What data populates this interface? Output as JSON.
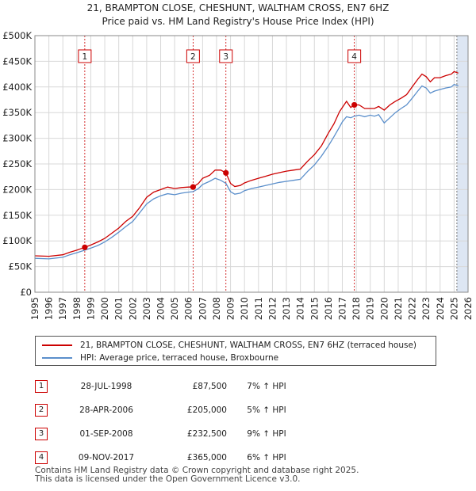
{
  "header": {
    "title_line1": "21, BRAMPTON CLOSE, CHESHUNT, WALTHAM CROSS, EN7 6HZ",
    "title_line2": "Price paid vs. HM Land Registry's House Price Index (HPI)"
  },
  "colors": {
    "property": "#cc0000",
    "hpi": "#5b8fcb",
    "shade": "#dde6f3",
    "marker_border": "#cc0000"
  },
  "chart_data": {
    "type": "line",
    "title": "21, BRAMPTON CLOSE, CHESHUNT, WALTHAM CROSS, EN7 6HZ — Price paid vs. HM Land Registry's House Price Index (HPI)",
    "xlabel": "",
    "ylabel": "",
    "xlim": [
      1995,
      2026
    ],
    "ylim": [
      0,
      500000
    ],
    "y_ticks": [
      0,
      50000,
      100000,
      150000,
      200000,
      250000,
      300000,
      350000,
      400000,
      450000,
      500000
    ],
    "y_tick_labels": [
      "£0",
      "£50K",
      "£100K",
      "£150K",
      "£200K",
      "£250K",
      "£300K",
      "£350K",
      "£400K",
      "£450K",
      "£500K"
    ],
    "x_ticks": [
      1995,
      1996,
      1997,
      1998,
      1999,
      2000,
      2001,
      2002,
      2003,
      2004,
      2005,
      2006,
      2007,
      2008,
      2009,
      2010,
      2011,
      2012,
      2013,
      2014,
      2015,
      2016,
      2017,
      2018,
      2019,
      2020,
      2021,
      2022,
      2023,
      2024,
      2025,
      2026
    ],
    "x_tick_labels": [
      "1995",
      "1996",
      "1997",
      "1998",
      "1999",
      "2000",
      "2001",
      "2002",
      "2003",
      "2004",
      "2005",
      "2006",
      "2007",
      "2008",
      "2009",
      "2010",
      "2011",
      "2012",
      "2013",
      "2014",
      "2015",
      "2016",
      "2017",
      "2018",
      "2019",
      "2020",
      "2021",
      "2022",
      "2023",
      "2024",
      "2025",
      "2026"
    ],
    "grid": true,
    "forecast_shade_from": 2025.2,
    "series": [
      {
        "name": "21, BRAMPTON CLOSE, CHESHUNT, WALTHAM CROSS, EN7 6HZ (terraced house)",
        "color": "#cc0000",
        "x": [
          1995.0,
          1996.0,
          1997.0,
          1997.5,
          1998.0,
          1998.57,
          1999.0,
          1999.5,
          2000.0,
          2000.5,
          2001.0,
          2001.5,
          2002.0,
          2002.5,
          2003.0,
          2003.5,
          2004.0,
          2004.5,
          2005.0,
          2005.5,
          2006.0,
          2006.32,
          2006.7,
          2007.0,
          2007.5,
          2007.9,
          2008.3,
          2008.67,
          2009.0,
          2009.3,
          2009.7,
          2010.0,
          2010.5,
          2011.0,
          2011.5,
          2012.0,
          2012.5,
          2013.0,
          2013.5,
          2014.0,
          2014.5,
          2015.0,
          2015.5,
          2016.0,
          2016.4,
          2016.8,
          2017.0,
          2017.3,
          2017.6,
          2017.86,
          2018.2,
          2018.6,
          2019.0,
          2019.3,
          2019.6,
          2020.0,
          2020.4,
          2020.8,
          2021.2,
          2021.6,
          2022.0,
          2022.4,
          2022.7,
          2023.0,
          2023.3,
          2023.6,
          2024.0,
          2024.4,
          2024.8,
          2025.0,
          2025.3
        ],
        "values": [
          71000,
          70000,
          73000,
          78000,
          82000,
          87500,
          92000,
          98000,
          105000,
          115000,
          125000,
          138000,
          148000,
          165000,
          185000,
          195000,
          200000,
          205000,
          202000,
          204000,
          205000,
          205000,
          212000,
          222000,
          228000,
          238000,
          238000,
          232500,
          212000,
          206000,
          208000,
          213000,
          218000,
          222000,
          226000,
          230000,
          233000,
          236000,
          238000,
          240000,
          255000,
          268000,
          285000,
          310000,
          328000,
          352000,
          360000,
          372000,
          360000,
          365000,
          365000,
          358000,
          358000,
          358000,
          362000,
          355000,
          365000,
          372000,
          378000,
          385000,
          400000,
          415000,
          425000,
          420000,
          410000,
          418000,
          418000,
          422000,
          425000,
          430000,
          427000
        ]
      },
      {
        "name": "HPI: Average price, terraced house, Broxbourne",
        "color": "#5b8fcb",
        "x": [
          1995.0,
          1996.0,
          1997.0,
          1997.5,
          1998.0,
          1998.57,
          1999.0,
          1999.5,
          2000.0,
          2000.5,
          2001.0,
          2001.5,
          2002.0,
          2002.5,
          2003.0,
          2003.5,
          2004.0,
          2004.5,
          2005.0,
          2005.5,
          2006.0,
          2006.32,
          2006.7,
          2007.0,
          2007.5,
          2007.9,
          2008.3,
          2008.67,
          2009.0,
          2009.3,
          2009.7,
          2010.0,
          2010.5,
          2011.0,
          2011.5,
          2012.0,
          2012.5,
          2013.0,
          2013.5,
          2014.0,
          2014.5,
          2015.0,
          2015.5,
          2016.0,
          2016.4,
          2016.8,
          2017.0,
          2017.3,
          2017.6,
          2017.86,
          2018.2,
          2018.6,
          2019.0,
          2019.3,
          2019.6,
          2020.0,
          2020.4,
          2020.8,
          2021.2,
          2021.6,
          2022.0,
          2022.4,
          2022.7,
          2023.0,
          2023.3,
          2023.6,
          2024.0,
          2024.4,
          2024.8,
          2025.0,
          2025.3
        ],
        "values": [
          66000,
          65000,
          68000,
          73000,
          77000,
          82000,
          86000,
          91000,
          98000,
          107000,
          117000,
          128000,
          138000,
          155000,
          172000,
          182000,
          188000,
          192000,
          190000,
          193000,
          195000,
          196000,
          202000,
          210000,
          216000,
          222000,
          218000,
          212000,
          196000,
          191000,
          193000,
          198000,
          202000,
          205000,
          208000,
          211000,
          214000,
          216000,
          218000,
          220000,
          235000,
          248000,
          265000,
          285000,
          303000,
          322000,
          332000,
          342000,
          340000,
          343000,
          345000,
          342000,
          345000,
          343000,
          346000,
          330000,
          340000,
          350000,
          358000,
          365000,
          378000,
          392000,
          402000,
          398000,
          388000,
          392000,
          395000,
          398000,
          400000,
          405000,
          402000
        ]
      }
    ],
    "sales": [
      {
        "label": "1",
        "date": "28-JUL-1998",
        "x": 1998.57,
        "price": 87500
      },
      {
        "label": "2",
        "date": "28-APR-2006",
        "x": 2006.32,
        "price": 205000
      },
      {
        "label": "3",
        "date": "01-SEP-2008",
        "x": 2008.67,
        "price": 232500
      },
      {
        "label": "4",
        "date": "09-NOV-2017",
        "x": 2017.86,
        "price": 365000
      }
    ]
  },
  "legend": {
    "property_label": "21, BRAMPTON CLOSE, CHESHUNT, WALTHAM CROSS, EN7 6HZ (terraced house)",
    "hpi_label": "HPI: Average price, terraced house, Broxbourne"
  },
  "sales_table": [
    {
      "num": "1",
      "date": "28-JUL-1998",
      "price": "£87,500",
      "hpi": "7% ↑ HPI"
    },
    {
      "num": "2",
      "date": "28-APR-2006",
      "price": "£205,000",
      "hpi": "5% ↑ HPI"
    },
    {
      "num": "3",
      "date": "01-SEP-2008",
      "price": "£232,500",
      "hpi": "9% ↑ HPI"
    },
    {
      "num": "4",
      "date": "09-NOV-2017",
      "price": "£365,000",
      "hpi": "6% ↑ HPI"
    }
  ],
  "footer": {
    "line1": "Contains HM Land Registry data © Crown copyright and database right 2025.",
    "line2": "This data is licensed under the Open Government Licence v3.0."
  }
}
